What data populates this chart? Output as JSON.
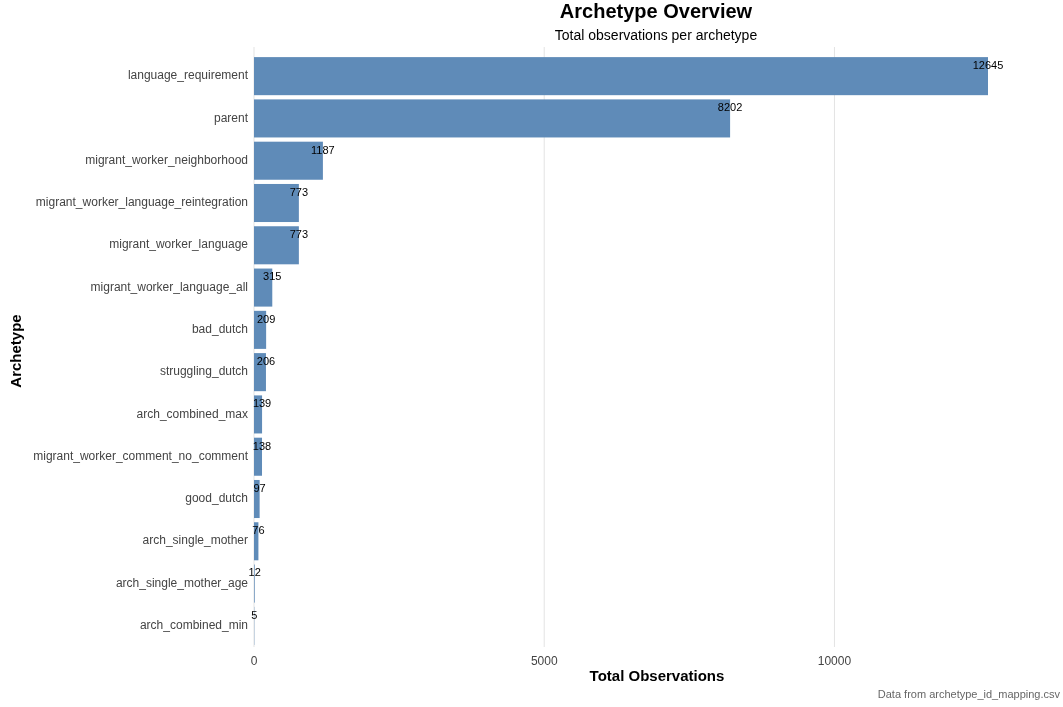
{
  "chart_data": {
    "type": "bar",
    "orientation": "horizontal",
    "title": "Archetype Overview",
    "subtitle": "Total observations per archetype",
    "xlabel": "Total Observations",
    "ylabel": "Archetype",
    "categories": [
      "language_requirement",
      "parent",
      "migrant_worker_neighborhood",
      "migrant_worker_language_reintegration",
      "migrant_worker_language",
      "migrant_worker_language_all",
      "bad_dutch",
      "struggling_dutch",
      "arch_combined_max",
      "migrant_worker_comment_no_comment",
      "good_dutch",
      "arch_single_mother",
      "arch_single_mother_age",
      "arch_combined_min"
    ],
    "values": [
      12645,
      8202,
      1187,
      773,
      773,
      315,
      209,
      206,
      139,
      138,
      97,
      76,
      12,
      5
    ],
    "color": "#5f8bb8",
    "xlim": [
      0,
      12645
    ],
    "xticks": [
      0,
      5000,
      10000
    ],
    "grid": "x",
    "data_labels": true,
    "annotations": [
      "Data from archetype_id_mapping.csv"
    ]
  }
}
